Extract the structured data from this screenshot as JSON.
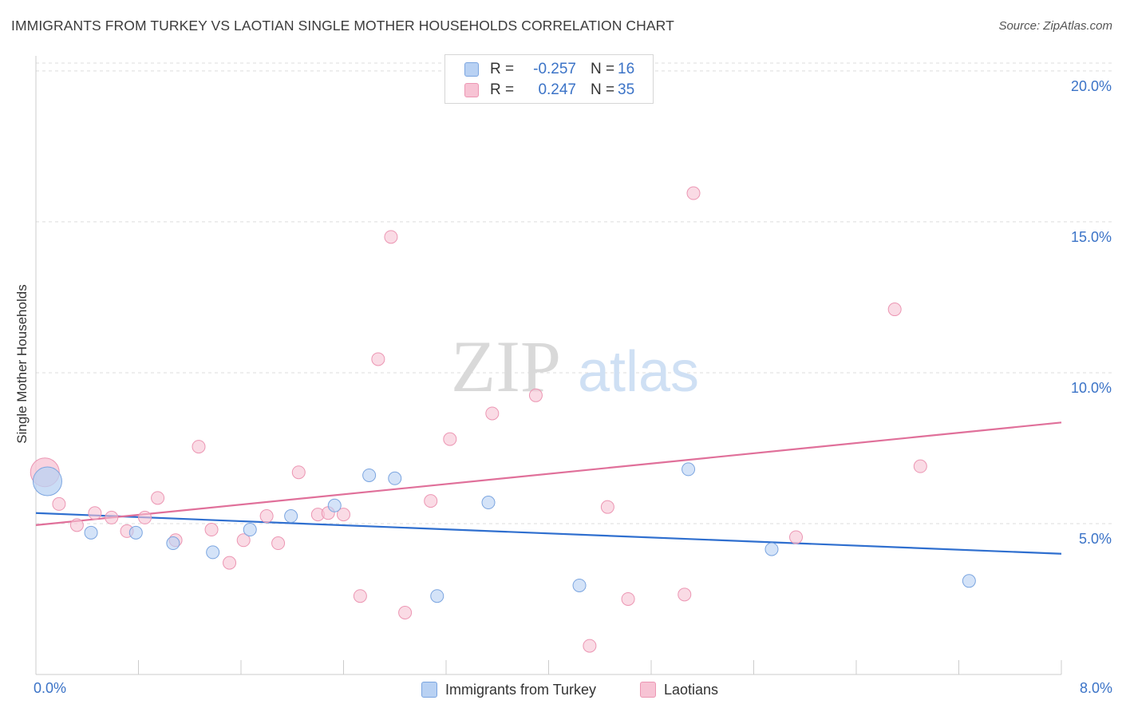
{
  "header": {
    "title": "IMMIGRANTS FROM TURKEY VS LAOTIAN SINGLE MOTHER HOUSEHOLDS CORRELATION CHART",
    "source": "Source: ZipAtlas.com"
  },
  "watermark": {
    "zip": "ZIP",
    "atlas": "atlas"
  },
  "colors": {
    "blue_fill": "#b8d1f3",
    "blue_stroke": "#7ba5e0",
    "blue_line": "#2f6fcf",
    "pink_fill": "#f7c3d4",
    "pink_stroke": "#ec96b3",
    "pink_line": "#e0709a",
    "accent_text": "#3b73c7",
    "grid": "#dddddd"
  },
  "legend": {
    "rows": [
      {
        "r_label": "R =",
        "r_value": "-0.257",
        "n_label": "N =",
        "n_value": "16"
      },
      {
        "r_label": "R =",
        "r_value": "0.247",
        "n_label": "N =",
        "n_value": "35"
      }
    ]
  },
  "bottom_legend": [
    {
      "label": "Immigrants from Turkey"
    },
    {
      "label": "Laotians"
    }
  ],
  "chart_data": {
    "type": "scatter",
    "title": "IMMIGRANTS FROM TURKEY VS LAOTIAN SINGLE MOTHER HOUSEHOLDS CORRELATION CHART",
    "xlabel": "",
    "ylabel": "Single Mother Households",
    "xlim": [
      0,
      8
    ],
    "ylim": [
      0,
      20.5
    ],
    "x_tick_labels": [
      "0.0%",
      "8.0%"
    ],
    "y_ticks": [
      5,
      10,
      15,
      20
    ],
    "y_tick_labels": [
      "5.0%",
      "10.0%",
      "15.0%",
      "20.0%"
    ],
    "grid": "horizontal dashed",
    "legend_position": "top-center",
    "series": [
      {
        "name": "Immigrants from Turkey",
        "color": "#b8d1f3",
        "r": -0.257,
        "n": 16,
        "trend": {
          "x": [
            0,
            8
          ],
          "y": [
            5.35,
            4.0
          ]
        },
        "points": [
          {
            "x": 0.09,
            "y": 6.4,
            "big": true
          },
          {
            "x": 0.43,
            "y": 4.7
          },
          {
            "x": 0.78,
            "y": 4.7
          },
          {
            "x": 1.07,
            "y": 4.35
          },
          {
            "x": 1.38,
            "y": 4.05
          },
          {
            "x": 1.67,
            "y": 4.8
          },
          {
            "x": 1.99,
            "y": 5.25
          },
          {
            "x": 2.33,
            "y": 5.6
          },
          {
            "x": 2.6,
            "y": 6.6
          },
          {
            "x": 2.8,
            "y": 6.5
          },
          {
            "x": 3.13,
            "y": 2.6
          },
          {
            "x": 3.53,
            "y": 5.7
          },
          {
            "x": 4.24,
            "y": 2.95
          },
          {
            "x": 5.09,
            "y": 6.8
          },
          {
            "x": 5.74,
            "y": 4.15
          },
          {
            "x": 7.28,
            "y": 3.1
          }
        ]
      },
      {
        "name": "Laotians",
        "color": "#f7c3d4",
        "r": 0.247,
        "n": 35,
        "trend": {
          "x": [
            0,
            8
          ],
          "y": [
            4.95,
            8.35
          ]
        },
        "points": [
          {
            "x": 0.07,
            "y": 6.7,
            "big": true
          },
          {
            "x": 0.18,
            "y": 5.65
          },
          {
            "x": 0.32,
            "y": 4.95
          },
          {
            "x": 0.46,
            "y": 5.35
          },
          {
            "x": 0.59,
            "y": 5.2
          },
          {
            "x": 0.71,
            "y": 4.75
          },
          {
            "x": 0.85,
            "y": 5.2
          },
          {
            "x": 0.95,
            "y": 5.85
          },
          {
            "x": 1.09,
            "y": 4.45
          },
          {
            "x": 1.27,
            "y": 7.55
          },
          {
            "x": 1.37,
            "y": 4.8
          },
          {
            "x": 1.51,
            "y": 3.7
          },
          {
            "x": 1.62,
            "y": 4.45
          },
          {
            "x": 1.8,
            "y": 5.25
          },
          {
            "x": 1.89,
            "y": 4.35
          },
          {
            "x": 2.05,
            "y": 6.7
          },
          {
            "x": 2.2,
            "y": 5.3
          },
          {
            "x": 2.28,
            "y": 5.35
          },
          {
            "x": 2.4,
            "y": 5.3
          },
          {
            "x": 2.53,
            "y": 2.6
          },
          {
            "x": 2.67,
            "y": 10.45
          },
          {
            "x": 2.77,
            "y": 14.5
          },
          {
            "x": 2.88,
            "y": 2.05
          },
          {
            "x": 3.08,
            "y": 5.75
          },
          {
            "x": 3.23,
            "y": 7.8
          },
          {
            "x": 3.56,
            "y": 8.65
          },
          {
            "x": 3.9,
            "y": 9.25
          },
          {
            "x": 4.32,
            "y": 0.95
          },
          {
            "x": 4.46,
            "y": 5.55
          },
          {
            "x": 4.62,
            "y": 2.5
          },
          {
            "x": 5.06,
            "y": 2.65
          },
          {
            "x": 5.13,
            "y": 15.95
          },
          {
            "x": 5.93,
            "y": 4.55
          },
          {
            "x": 6.7,
            "y": 12.1
          },
          {
            "x": 6.9,
            "y": 6.9
          }
        ]
      }
    ]
  }
}
